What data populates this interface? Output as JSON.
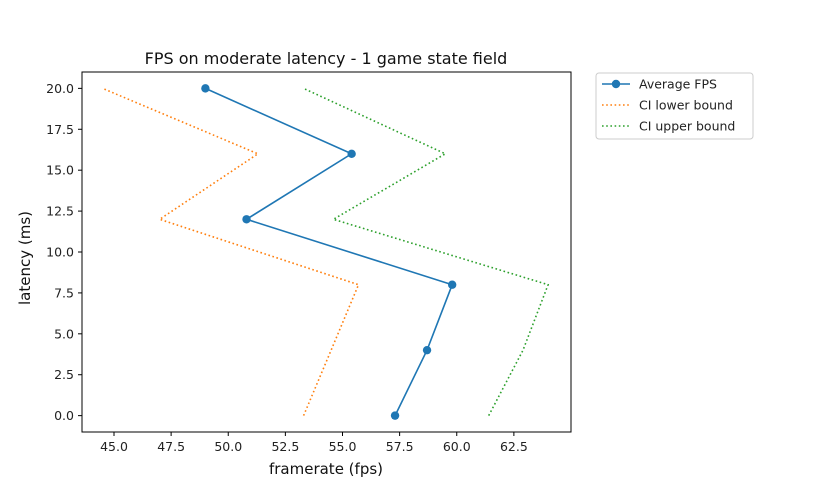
{
  "chart_data": {
    "type": "line",
    "title": "FPS on moderate latency - 1 game state field",
    "xlabel": "framerate (fps)",
    "ylabel": "latency (ms)",
    "xlim": [
      43.6,
      65.0
    ],
    "ylim": [
      -1.0,
      21.0
    ],
    "xticks": [
      45.0,
      47.5,
      50.0,
      52.5,
      55.0,
      57.5,
      60.0,
      62.5
    ],
    "xtick_labels": [
      "45.0",
      "47.5",
      "50.0",
      "52.5",
      "55.0",
      "57.5",
      "60.0",
      "62.5"
    ],
    "yticks": [
      0.0,
      2.5,
      5.0,
      7.5,
      10.0,
      12.5,
      15.0,
      17.5,
      20.0
    ],
    "ytick_labels": [
      "0.0",
      "2.5",
      "5.0",
      "7.5",
      "10.0",
      "12.5",
      "15.0",
      "17.5",
      "20.0"
    ],
    "grid": false,
    "legend_position": "outside-top-right",
    "series": [
      {
        "name": "Average FPS",
        "color": "#1f77b4",
        "style": "solid",
        "marker": "circle",
        "points": [
          [
            57.3,
            0
          ],
          [
            58.7,
            4
          ],
          [
            59.8,
            8
          ],
          [
            50.8,
            12
          ],
          [
            55.4,
            16
          ],
          [
            49.0,
            20
          ]
        ]
      },
      {
        "name": "CI lower bound",
        "color": "#ff7f0e",
        "style": "dotted",
        "marker": "none",
        "points": [
          [
            53.3,
            0
          ],
          [
            54.5,
            4
          ],
          [
            55.7,
            8
          ],
          [
            47.0,
            12
          ],
          [
            51.3,
            16
          ],
          [
            44.5,
            20
          ]
        ]
      },
      {
        "name": "CI upper bound",
        "color": "#2ca02c",
        "style": "dotted",
        "marker": "none",
        "points": [
          [
            61.4,
            0
          ],
          [
            62.9,
            4
          ],
          [
            64.0,
            8
          ],
          [
            54.6,
            12
          ],
          [
            59.5,
            16
          ],
          [
            53.3,
            20
          ]
        ]
      }
    ]
  }
}
